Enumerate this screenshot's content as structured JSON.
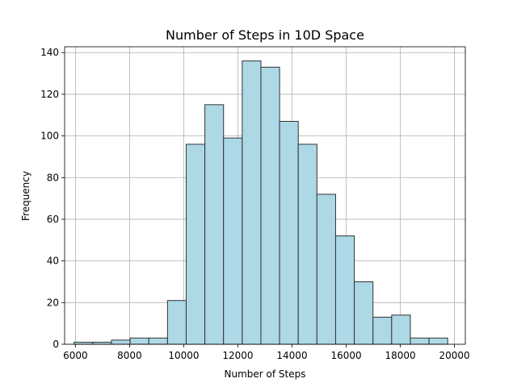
{
  "chart_data": {
    "type": "bar",
    "title": "Number of Steps in 10D Space",
    "xlabel": "Number of Steps",
    "ylabel": "Frequency",
    "xlim": [
      5600,
      20400
    ],
    "ylim": [
      0,
      142.8
    ],
    "xticks": [
      6000,
      8000,
      10000,
      12000,
      14000,
      16000,
      18000,
      20000
    ],
    "yticks": [
      0,
      20,
      40,
      60,
      80,
      100,
      120,
      140
    ],
    "grid": true,
    "bins": [
      {
        "x0": 5950,
        "x1": 6640,
        "count": 1
      },
      {
        "x0": 6640,
        "x1": 7330,
        "count": 1
      },
      {
        "x0": 7330,
        "x1": 8020,
        "count": 2
      },
      {
        "x0": 8020,
        "x1": 8710,
        "count": 3
      },
      {
        "x0": 8710,
        "x1": 9400,
        "count": 3
      },
      {
        "x0": 9400,
        "x1": 10090,
        "count": 21
      },
      {
        "x0": 10090,
        "x1": 10780,
        "count": 96
      },
      {
        "x0": 10780,
        "x1": 11470,
        "count": 115
      },
      {
        "x0": 11470,
        "x1": 12160,
        "count": 99
      },
      {
        "x0": 12160,
        "x1": 12850,
        "count": 136
      },
      {
        "x0": 12850,
        "x1": 13540,
        "count": 133
      },
      {
        "x0": 13540,
        "x1": 14230,
        "count": 107
      },
      {
        "x0": 14230,
        "x1": 14920,
        "count": 96
      },
      {
        "x0": 14920,
        "x1": 15610,
        "count": 72
      },
      {
        "x0": 15610,
        "x1": 16300,
        "count": 52
      },
      {
        "x0": 16300,
        "x1": 16990,
        "count": 30
      },
      {
        "x0": 16990,
        "x1": 17680,
        "count": 13
      },
      {
        "x0": 17680,
        "x1": 18370,
        "count": 14
      },
      {
        "x0": 18370,
        "x1": 19060,
        "count": 3
      },
      {
        "x0": 19060,
        "x1": 19750,
        "count": 3
      }
    ],
    "colors": {
      "bar_fill": "#add8e6",
      "bar_edge": "#333333",
      "grid": "#b0b0b0",
      "axis": "#000000"
    }
  }
}
